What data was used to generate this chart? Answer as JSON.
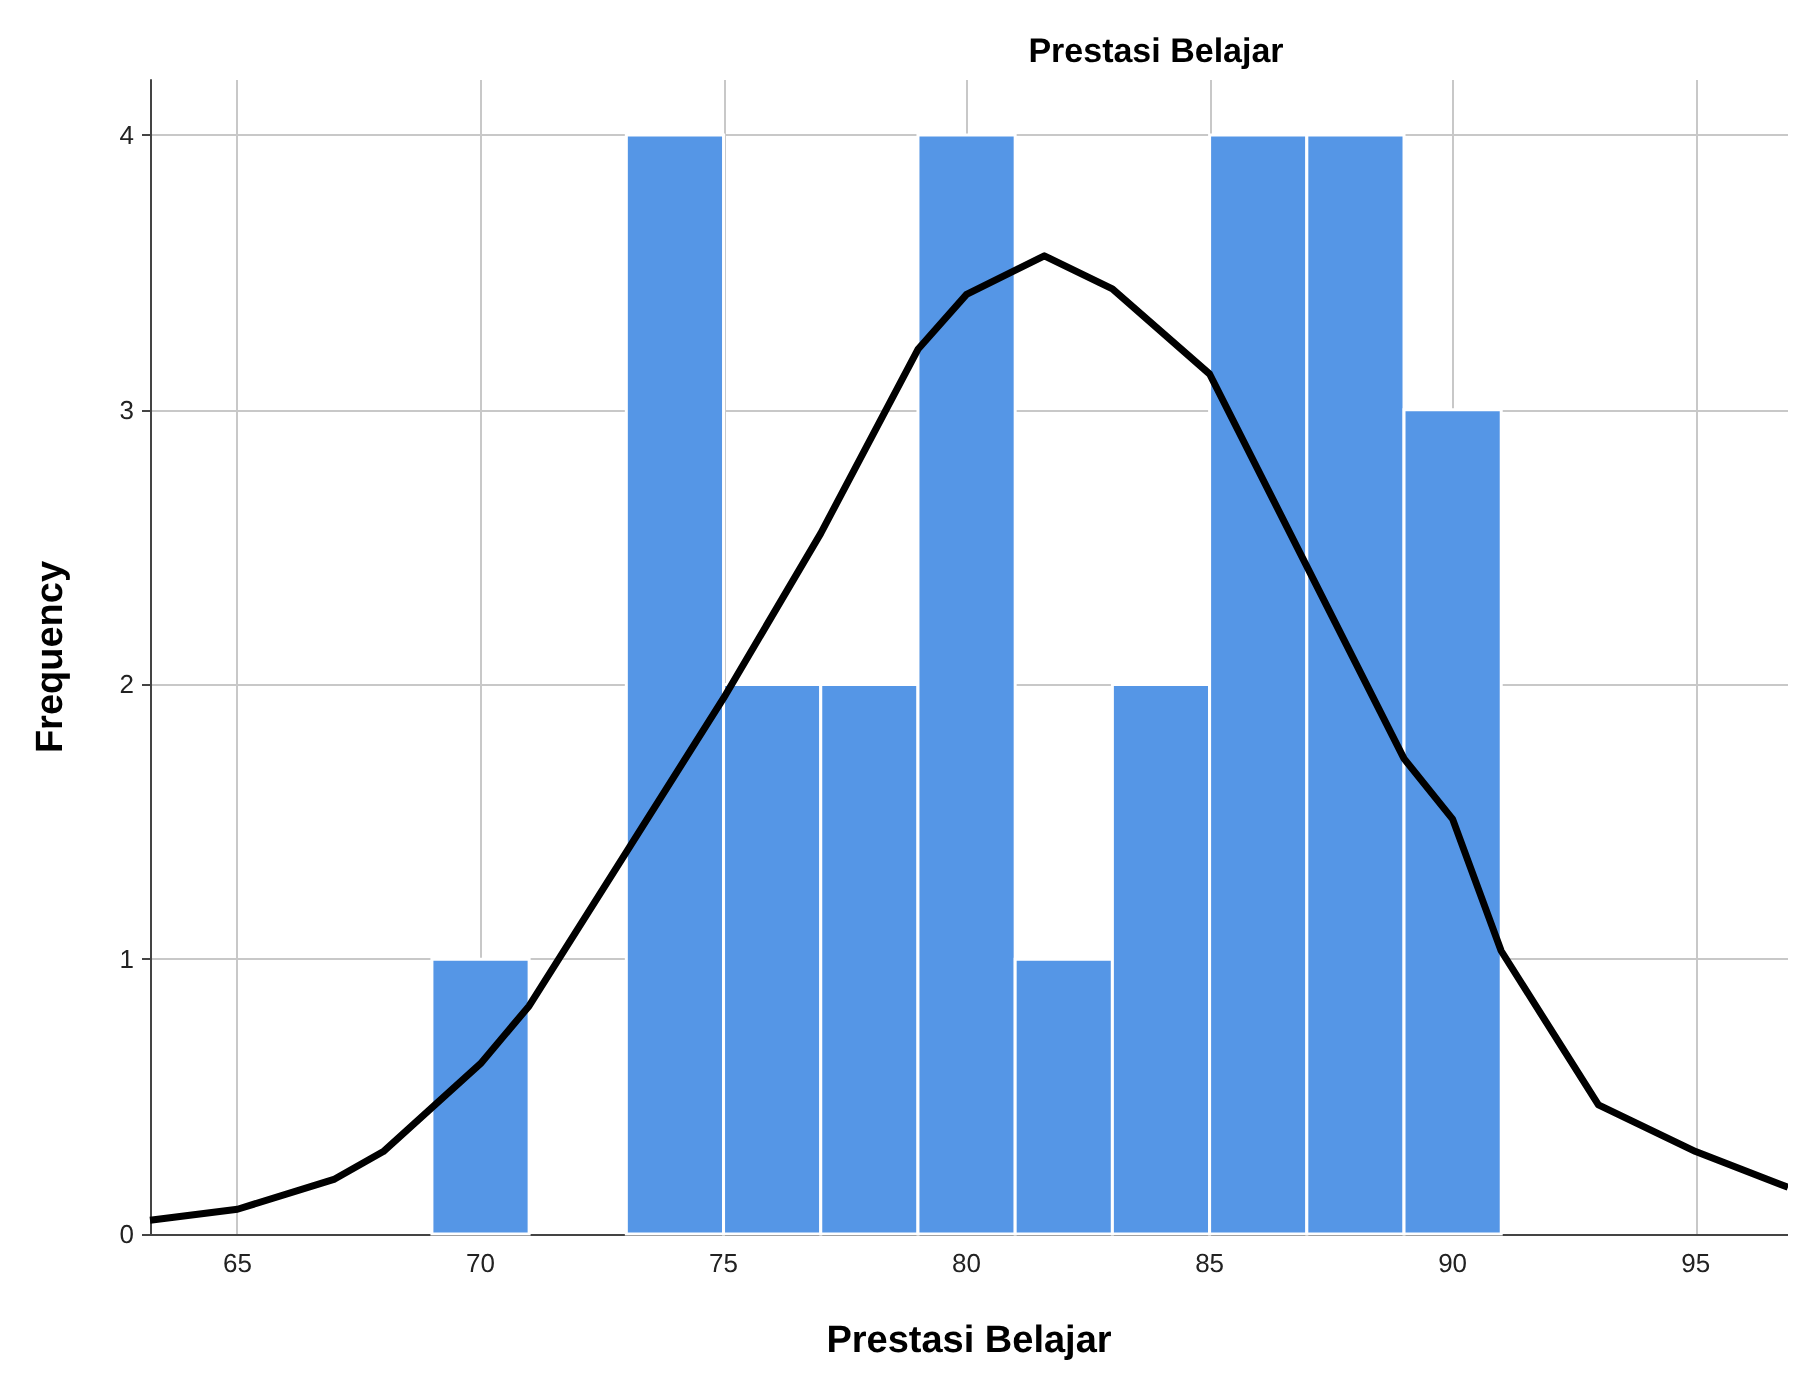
{
  "chart_data": {
    "type": "histogram",
    "title": "Prestasi Belajar",
    "xlabel": "Prestasi Belajar",
    "ylabel": "Frequency",
    "bins": [
      69,
      71,
      73,
      75,
      77,
      79,
      81,
      83,
      85,
      87,
      89,
      91
    ],
    "values": [
      1,
      0,
      4,
      2,
      2,
      4,
      1,
      2,
      4,
      4,
      3
    ],
    "color": "#5596e6",
    "series": [
      {
        "type": "line",
        "color": "#000000",
        "x": [
          63.2,
          65,
          67,
          68,
          70,
          71,
          73,
          75,
          77,
          79,
          80,
          81.6,
          83,
          85,
          87,
          89,
          90,
          91,
          93,
          95,
          96.9
        ],
        "values": [
          0.05,
          0.09,
          0.2,
          0.3,
          0.62,
          0.83,
          1.39,
          1.95,
          2.55,
          3.22,
          3.42,
          3.56,
          3.44,
          3.13,
          2.43,
          1.73,
          1.51,
          1.03,
          0.47,
          0.3,
          0.17
        ]
      }
    ],
    "xlim": [
      63.2,
      96.9
    ],
    "xticks": [
      65,
      70,
      75,
      80,
      85,
      90,
      95
    ],
    "ylim": [
      0,
      4.2
    ],
    "yticks": [
      0,
      1,
      2,
      3,
      4
    ],
    "grid": true,
    "marker": "none",
    "line_style": "solid"
  }
}
